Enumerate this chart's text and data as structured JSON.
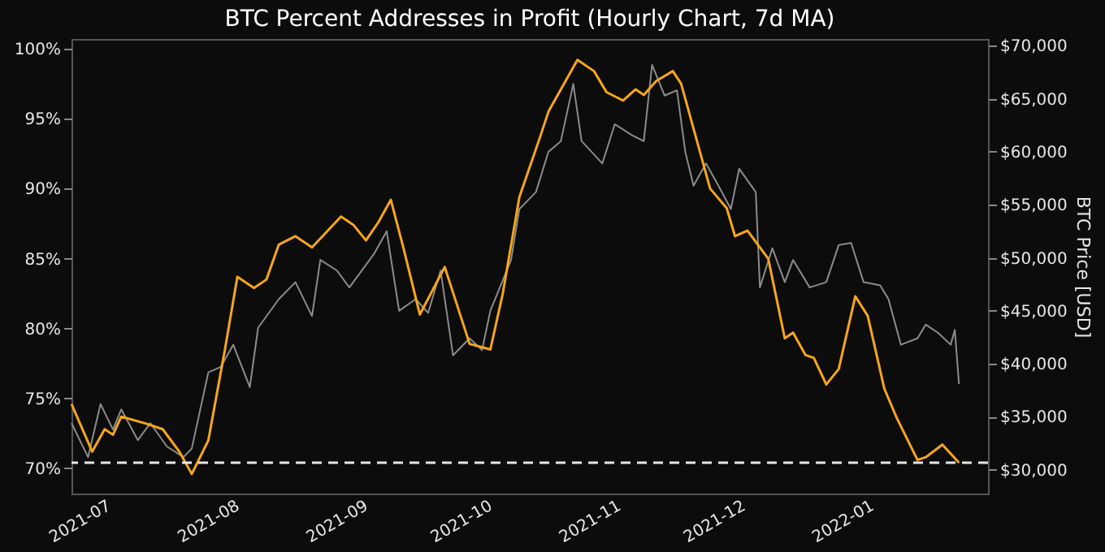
{
  "chart_data": {
    "type": "line",
    "title": "BTC Percent Addresses in Profit (Hourly Chart, 7d MA)",
    "y2label": "BTC Price [USD]",
    "xlim": [
      "2021-06-23",
      "2022-01-30"
    ],
    "xticks": [
      {
        "value": "2021-07-01",
        "label": "2021-07"
      },
      {
        "value": "2021-08-01",
        "label": "2021-08"
      },
      {
        "value": "2021-09-01",
        "label": "2021-09"
      },
      {
        "value": "2021-10-01",
        "label": "2021-10"
      },
      {
        "value": "2021-11-01",
        "label": "2021-11"
      },
      {
        "value": "2021-12-01",
        "label": "2021-12"
      },
      {
        "value": "2022-01-01",
        "label": "2022-01"
      }
    ],
    "ylim": [
      68.2,
      100.7
    ],
    "yticks": [
      {
        "value": 70,
        "label": "70%"
      },
      {
        "value": 75,
        "label": "75%"
      },
      {
        "value": 80,
        "label": "80%"
      },
      {
        "value": 85,
        "label": "85%"
      },
      {
        "value": 90,
        "label": "90%"
      },
      {
        "value": 95,
        "label": "95%"
      },
      {
        "value": 100,
        "label": "100%"
      }
    ],
    "y2lim": [
      27760,
      70640
    ],
    "y2ticks": [
      {
        "value": 30000,
        "label": "$30,000"
      },
      {
        "value": 35000,
        "label": "$35,000"
      },
      {
        "value": 40000,
        "label": "$40,000"
      },
      {
        "value": 45000,
        "label": "$45,000"
      },
      {
        "value": 50000,
        "label": "$50,000"
      },
      {
        "value": 55000,
        "label": "$55,000"
      },
      {
        "value": 60000,
        "label": "$60,000"
      },
      {
        "value": 65000,
        "label": "$65,000"
      },
      {
        "value": 70000,
        "label": "$70,000"
      }
    ],
    "grid": false,
    "line_style": "solid",
    "marker": "none",
    "ref_lines": [
      {
        "axis": "y",
        "value": 70.4,
        "color": "#e6e6e6",
        "line_style": "dashed"
      }
    ],
    "series": [
      {
        "axis": "y2",
        "color": "#8c8c8c",
        "x": [
          "2021-06-23",
          "2021-06-27",
          "2021-06-30",
          "2021-07-03",
          "2021-07-05",
          "2021-07-09",
          "2021-07-12",
          "2021-07-16",
          "2021-07-20",
          "2021-07-22",
          "2021-07-26",
          "2021-07-29",
          "2021-08-01",
          "2021-08-05",
          "2021-08-07",
          "2021-08-12",
          "2021-08-16",
          "2021-08-20",
          "2021-08-22",
          "2021-08-26",
          "2021-08-29",
          "2021-09-04",
          "2021-09-07",
          "2021-09-10",
          "2021-09-14",
          "2021-09-17",
          "2021-09-20",
          "2021-09-23",
          "2021-09-27",
          "2021-09-30",
          "2021-10-02",
          "2021-10-07",
          "2021-10-09",
          "2021-10-13",
          "2021-10-16",
          "2021-10-19",
          "2021-10-22",
          "2021-10-24",
          "2021-10-29",
          "2021-11-01",
          "2021-11-05",
          "2021-11-08",
          "2021-11-10",
          "2021-11-13",
          "2021-11-16",
          "2021-11-18",
          "2021-11-20",
          "2021-11-23",
          "2021-11-26",
          "2021-11-29",
          "2021-12-01",
          "2021-12-05",
          "2021-12-06",
          "2021-12-09",
          "2021-12-12",
          "2021-12-14",
          "2021-12-18",
          "2021-12-22",
          "2021-12-25",
          "2021-12-28",
          "2021-12-31",
          "2022-01-04",
          "2022-01-06",
          "2022-01-09",
          "2022-01-13",
          "2022-01-15",
          "2022-01-18",
          "2022-01-21",
          "2022-01-22",
          "2022-01-23"
        ],
        "values": [
          34400,
          31200,
          36200,
          33800,
          35700,
          32800,
          34400,
          32200,
          31200,
          32000,
          39200,
          39700,
          41800,
          37800,
          43400,
          46100,
          47700,
          44500,
          49800,
          48800,
          47200,
          50400,
          52500,
          45000,
          46100,
          44800,
          48800,
          40800,
          42400,
          41300,
          45000,
          49800,
          54600,
          56200,
          60000,
          61000,
          66400,
          61000,
          58900,
          62600,
          61600,
          61000,
          68200,
          65300,
          65800,
          60000,
          56800,
          58900,
          56800,
          54600,
          58400,
          56200,
          47200,
          50900,
          47700,
          49800,
          47200,
          47700,
          51200,
          51400,
          47700,
          47400,
          46100,
          41800,
          42400,
          43700,
          42900,
          41800,
          43200,
          38100
        ]
      },
      {
        "axis": "y",
        "color": "#f7a51c",
        "x": [
          "2021-06-23",
          "2021-06-28",
          "2021-07-01",
          "2021-07-03",
          "2021-07-05",
          "2021-07-11",
          "2021-07-15",
          "2021-07-19",
          "2021-07-22",
          "2021-07-26",
          "2021-07-30",
          "2021-08-02",
          "2021-08-06",
          "2021-08-09",
          "2021-08-12",
          "2021-08-16",
          "2021-08-20",
          "2021-08-27",
          "2021-08-30",
          "2021-09-02",
          "2021-09-05",
          "2021-09-08",
          "2021-09-11",
          "2021-09-15",
          "2021-09-21",
          "2021-09-27",
          "2021-10-02",
          "2021-10-05",
          "2021-10-09",
          "2021-10-14",
          "2021-10-16",
          "2021-10-23",
          "2021-10-27",
          "2021-10-30",
          "2021-11-03",
          "2021-11-06",
          "2021-11-08",
          "2021-11-11",
          "2021-11-15",
          "2021-11-17",
          "2021-11-24",
          "2021-11-28",
          "2021-11-30",
          "2021-12-03",
          "2021-12-08",
          "2021-12-12",
          "2021-12-14",
          "2021-12-17",
          "2021-12-19",
          "2021-12-22",
          "2021-12-25",
          "2021-12-29",
          "2022-01-01",
          "2022-01-05",
          "2022-01-08",
          "2022-01-13",
          "2022-01-15",
          "2022-01-19",
          "2022-01-23"
        ],
        "values": [
          74.6,
          71.2,
          72.8,
          72.4,
          73.7,
          73.2,
          72.8,
          71.2,
          69.6,
          72.0,
          78.5,
          83.7,
          82.9,
          83.5,
          86.0,
          86.6,
          85.8,
          88.0,
          87.4,
          86.3,
          87.6,
          89.2,
          85.8,
          81.0,
          84.4,
          78.9,
          78.5,
          82.5,
          89.4,
          93.7,
          95.5,
          99.2,
          98.4,
          96.9,
          96.3,
          97.1,
          96.7,
          97.7,
          98.4,
          97.5,
          90.0,
          88.6,
          86.6,
          87.0,
          85.0,
          79.3,
          79.7,
          78.1,
          77.9,
          76.0,
          77.1,
          82.3,
          80.9,
          75.7,
          73.6,
          70.6,
          70.8,
          71.7,
          70.4
        ]
      }
    ]
  }
}
